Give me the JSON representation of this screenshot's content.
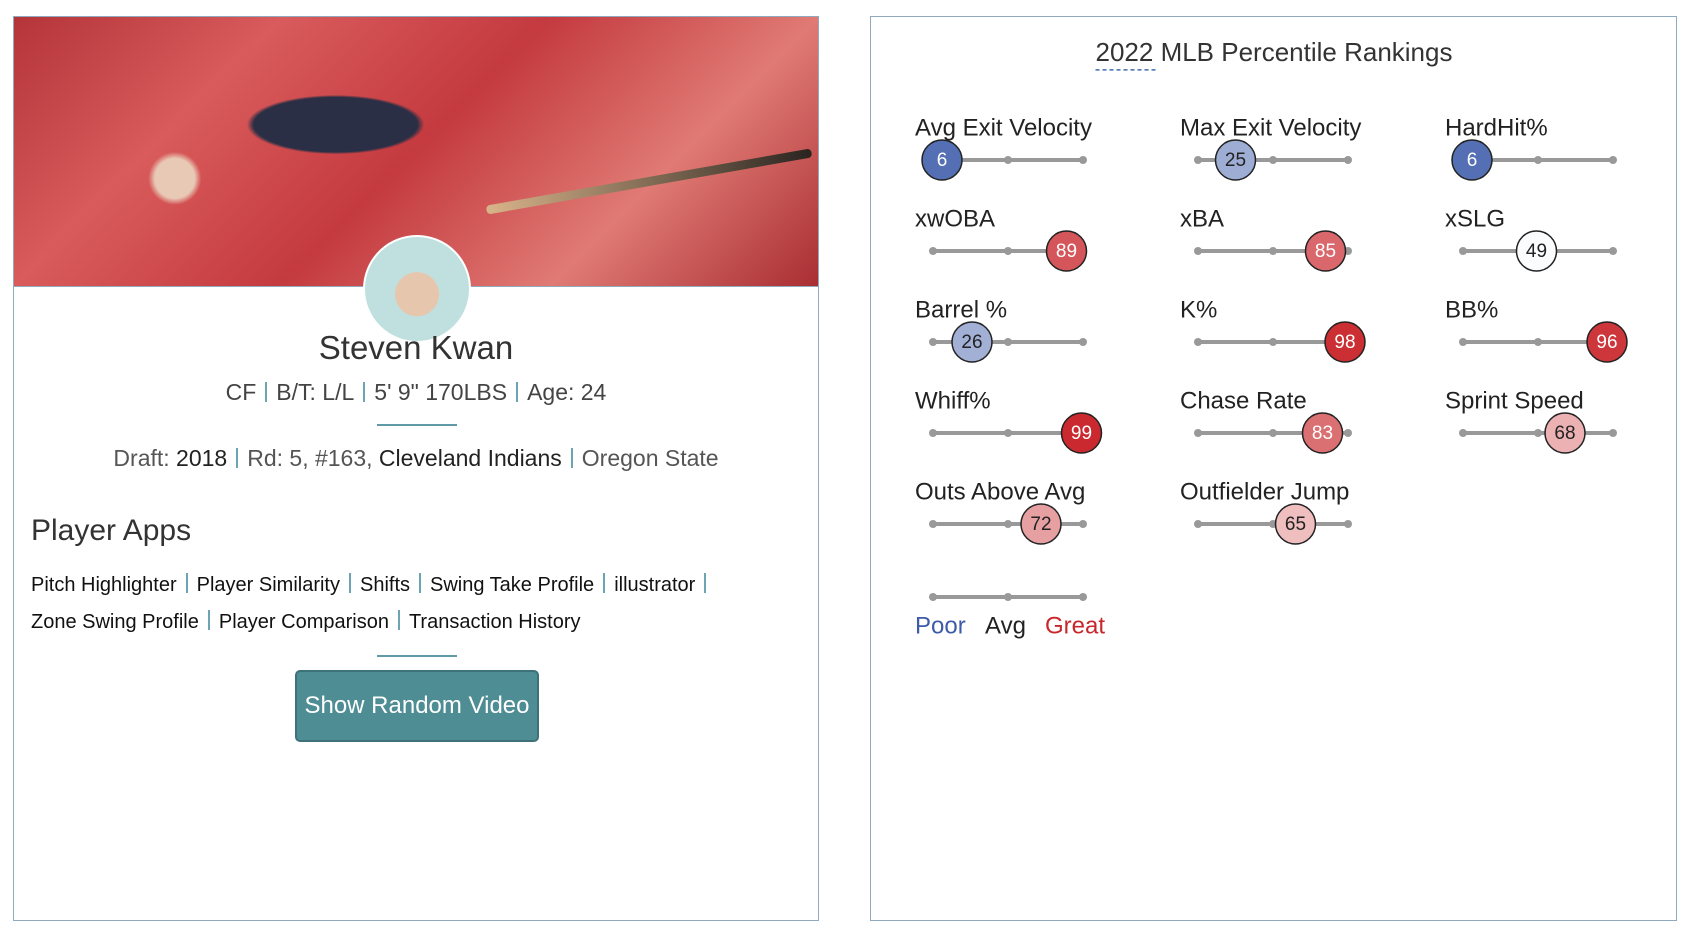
{
  "player": {
    "name": "Steven Kwan",
    "info": [
      "CF",
      "B/T: L/L",
      "5' 9\" 170LBS",
      "Age: 24"
    ],
    "draft": [
      {
        "label": "Draft:",
        "value": "2018"
      },
      {
        "label": "Rd: 5, #163,",
        "value": "Cleveland Indians"
      },
      {
        "label": "Oregon State"
      }
    ]
  },
  "apps": {
    "title": "Player Apps",
    "links": [
      [
        "Pitch Highlighter",
        "Player Similarity",
        "Shifts",
        "Swing Take Profile",
        "illustrator"
      ],
      [
        "Zone Swing Profile",
        "Player Comparison",
        "Transaction History"
      ]
    ],
    "button": "Show Random Video"
  },
  "rankings": {
    "title": "2022 MLB Percentile Rankings",
    "metrics": [
      {
        "label": "Avg Exit Velocity",
        "percentile": 6
      },
      {
        "label": "Max Exit Velocity",
        "percentile": 25
      },
      {
        "label": "HardHit%",
        "percentile": 6
      },
      {
        "label": "xwOBA",
        "percentile": 89
      },
      {
        "label": "xBA",
        "percentile": 85
      },
      {
        "label": "xSLG",
        "percentile": 49
      },
      {
        "label": "Barrel %",
        "percentile": 26
      },
      {
        "label": "K%",
        "percentile": 98
      },
      {
        "label": "BB%",
        "percentile": 96
      },
      {
        "label": "Whiff%",
        "percentile": 99
      },
      {
        "label": "Chase Rate",
        "percentile": 83
      },
      {
        "label": "Sprint Speed",
        "percentile": 68
      },
      {
        "label": "Outs Above Avg",
        "percentile": 72
      },
      {
        "label": "Outfielder Jump",
        "percentile": 65
      }
    ],
    "legend": [
      "Poor",
      "Avg",
      "Great"
    ]
  }
}
